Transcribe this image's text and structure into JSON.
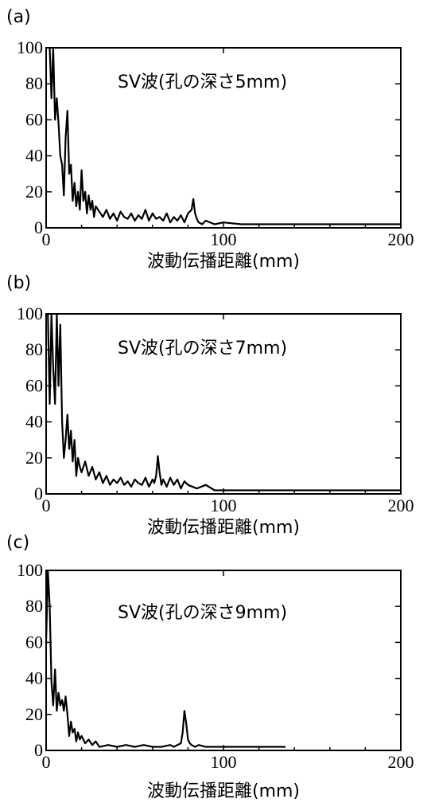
{
  "chart_data": [
    {
      "type": "line",
      "panel_label": "(a)",
      "title": "SV波(孔の深さ5mm)",
      "xlabel": "波動伝播距離(mm)",
      "ylabel": "",
      "xlim": [
        0,
        200
      ],
      "ylim": [
        0,
        100
      ],
      "xticks": [
        "0",
        "100",
        "200"
      ],
      "yticks": [
        "0",
        "20",
        "40",
        "60",
        "80",
        "100"
      ],
      "series": [
        {
          "x": [
            2,
            3,
            4,
            5,
            6,
            7,
            8,
            9,
            10,
            11,
            12,
            13,
            14,
            15,
            16,
            17,
            18,
            19,
            20,
            21,
            22,
            23,
            24,
            25,
            26,
            27,
            28,
            30,
            32,
            34,
            36,
            38,
            40,
            42,
            44,
            46,
            48,
            50,
            52,
            54,
            56,
            58,
            60,
            62,
            64,
            66,
            68,
            70,
            72,
            74,
            76,
            78,
            80,
            82,
            83,
            84,
            85,
            86,
            88,
            90,
            95,
            100,
            110,
            120,
            140,
            160,
            180,
            200
          ],
          "y": [
            100,
            72,
            100,
            60,
            72,
            58,
            40,
            35,
            18,
            50,
            65,
            30,
            35,
            15,
            25,
            12,
            20,
            10,
            32,
            15,
            20,
            8,
            18,
            10,
            15,
            6,
            12,
            9,
            6,
            10,
            5,
            8,
            4,
            9,
            6,
            5,
            8,
            4,
            7,
            5,
            10,
            4,
            8,
            5,
            6,
            4,
            8,
            3,
            6,
            4,
            7,
            3,
            8,
            10,
            16,
            8,
            5,
            3,
            2,
            4,
            2,
            3,
            2,
            2,
            2,
            2,
            2,
            2
          ]
        }
      ]
    },
    {
      "type": "line",
      "panel_label": "(b)",
      "title": "SV波(孔の深さ7mm)",
      "xlabel": "波動伝播距離(mm)",
      "ylabel": "",
      "xlim": [
        0,
        200
      ],
      "ylim": [
        0,
        100
      ],
      "xticks": [
        "0",
        "100",
        "200"
      ],
      "yticks": [
        "0",
        "20",
        "40",
        "60",
        "80",
        "100"
      ],
      "series": [
        {
          "x": [
            1,
            2,
            3,
            4,
            5,
            6,
            7,
            8,
            9,
            10,
            11,
            12,
            13,
            14,
            15,
            16,
            17,
            18,
            19,
            20,
            22,
            24,
            26,
            28,
            30,
            32,
            34,
            36,
            38,
            40,
            42,
            44,
            46,
            48,
            50,
            52,
            54,
            56,
            58,
            60,
            61,
            62,
            63,
            64,
            65,
            66,
            68,
            70,
            72,
            74,
            76,
            78,
            80,
            85,
            90,
            95,
            100,
            110,
            120,
            140,
            150,
            160,
            180,
            200
          ],
          "y": [
            100,
            50,
            100,
            70,
            50,
            100,
            60,
            94,
            40,
            20,
            30,
            44,
            25,
            35,
            18,
            30,
            10,
            20,
            15,
            12,
            18,
            10,
            15,
            8,
            12,
            6,
            10,
            5,
            8,
            6,
            9,
            5,
            7,
            4,
            8,
            6,
            5,
            9,
            4,
            8,
            6,
            10,
            21,
            12,
            5,
            8,
            4,
            9,
            5,
            8,
            3,
            7,
            5,
            3,
            5,
            2,
            2,
            2,
            2,
            2,
            2,
            2,
            2,
            2
          ]
        }
      ]
    },
    {
      "type": "line",
      "panel_label": "(c)",
      "title": "SV波(孔の深さ9mm)",
      "xlabel": "波動伝播距離(mm)",
      "ylabel": "",
      "xlim": [
        0,
        200
      ],
      "ylim": [
        0,
        100
      ],
      "xticks": [
        "0",
        "100",
        "200"
      ],
      "yticks": [
        "0",
        "20",
        "40",
        "60",
        "80",
        "100"
      ],
      "series": [
        {
          "x": [
            0,
            1,
            2,
            3,
            4,
            5,
            6,
            7,
            8,
            9,
            10,
            11,
            12,
            13,
            14,
            15,
            16,
            17,
            18,
            19,
            20,
            22,
            24,
            26,
            28,
            30,
            35,
            40,
            45,
            50,
            55,
            60,
            65,
            70,
            72,
            74,
            76,
            77,
            78,
            79,
            80,
            81,
            82,
            84,
            86,
            90,
            95,
            100,
            110,
            120,
            130,
            135
          ],
          "y": [
            60,
            100,
            80,
            38,
            25,
            45,
            22,
            32,
            25,
            28,
            22,
            30,
            20,
            8,
            16,
            10,
            12,
            5,
            10,
            6,
            8,
            4,
            6,
            3,
            5,
            2,
            3,
            2,
            3,
            2,
            3,
            2,
            2,
            3,
            2,
            3,
            4,
            10,
            22,
            15,
            6,
            4,
            3,
            2,
            3,
            2,
            2,
            2,
            2,
            2,
            2,
            2
          ]
        }
      ]
    }
  ]
}
